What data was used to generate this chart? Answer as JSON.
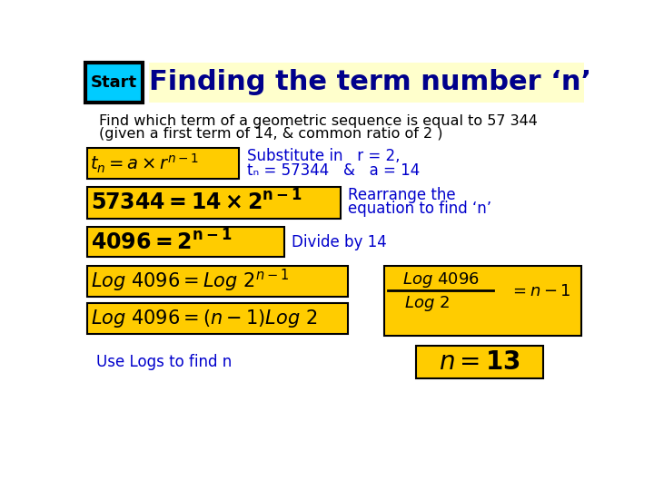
{
  "title": "Finding the term number ‘n’",
  "title_color": "#00008B",
  "title_bg": "#FFFFCC",
  "start_label": "Start",
  "start_bg": "#00CCFF",
  "start_border": "#000000",
  "body_bg": "#FFFFFF",
  "yellow": "#FFCC00",
  "blue_text": "#0000CC",
  "black_text": "#000000",
  "subtitle_line1": "Find which term of a geometric sequence is equal to 57 344",
  "subtitle_line2": "(given a first term of 14, & common ratio of 2 )",
  "side1_line1": "Substitute in   r = 2,",
  "side1_line2": "tₙ = 57344   &   a = 14",
  "side2_line1": "Rearrange the",
  "side2_line2": "equation to find ‘n’",
  "side3": "Divide by 14",
  "side4": "Use Logs to find n"
}
